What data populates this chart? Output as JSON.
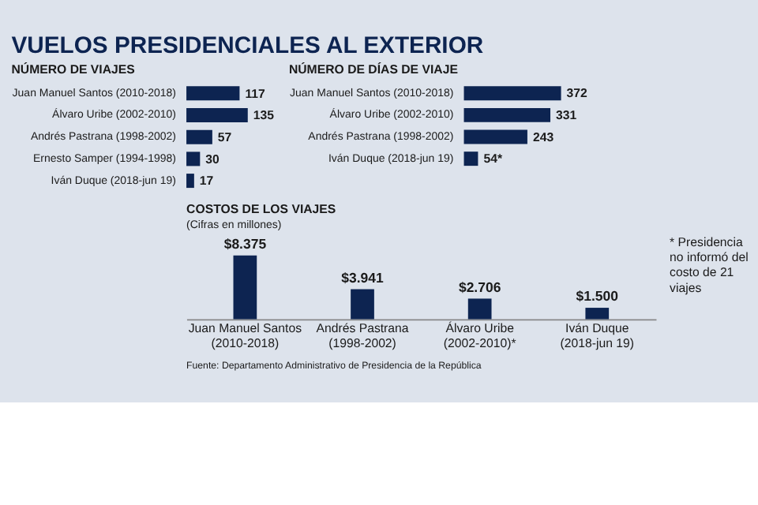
{
  "chart_data": [
    {
      "type": "bar",
      "title": "VUELOS PRESIDENCIALES AL EXTERIOR",
      "subtitle": "NÚMERO DE VIAJES",
      "orientation": "horizontal",
      "tick_labels": "y",
      "data_labels": true,
      "color": "#0d2451",
      "categories": [
        "Juan Manuel Santos (2010-2018)",
        "Álvaro Uribe (2002-2010)",
        "Andrés Pastrana (1998-2002)",
        "Ernesto Samper (1994-1998)",
        "Iván Duque (2018-jun 19)"
      ],
      "values": [
        117,
        135,
        57,
        30,
        17
      ]
    },
    {
      "type": "bar",
      "title": "NÚMERO DE DÍAS DE VIAJE",
      "orientation": "horizontal",
      "tick_labels": "y",
      "color": "#0d2451",
      "categories": [
        "Juan Manuel Santos (2010-2018)",
        "Álvaro Uribe (2002-2010)",
        "Andrés Pastrana (1998-2002)",
        "Iván Duque (2018-jun 19)"
      ],
      "values": [
        372,
        331,
        243,
        54
      ],
      "value_labels": [
        "372",
        "331",
        "243",
        "54*"
      ]
    },
    {
      "type": "bar",
      "title": "COSTOS DE LOS VIAJES",
      "subtitle": "(Cifras en millones)",
      "tick_labels": "x",
      "color": "#0d2451",
      "categories": [
        "Juan Manuel Santos (2010-2018)",
        "Andrés Pastrana (1998-2002)",
        "Álvaro Uribe (2002-2010)*",
        "Iván Duque (2018-jun 19)"
      ],
      "values": [
        8375,
        3941,
        2706,
        1500
      ],
      "value_labels": [
        "$8.375",
        "$3.941",
        "$2.706",
        "$1.500"
      ],
      "annotations": [
        "* Presidencia no informó del costo de 21 viajes",
        "Fuente: Departamento Administrativo de Presidencia de la República"
      ]
    }
  ]
}
